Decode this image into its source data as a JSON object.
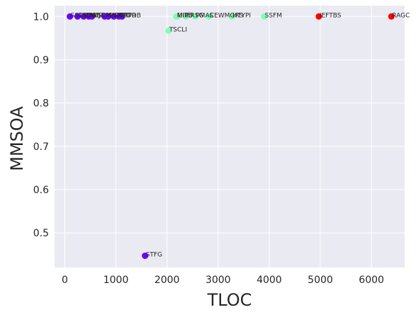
{
  "chart_data": {
    "type": "scatter",
    "title": "",
    "xlabel": "TLOC",
    "ylabel": "MMSOA",
    "xlim": [
      -200,
      6650
    ],
    "ylim": [
      0.42,
      1.025
    ],
    "xticks": [
      0,
      1000,
      2000,
      3000,
      4000,
      5000,
      6000
    ],
    "yticks": [
      0.5,
      0.6,
      0.7,
      0.8,
      0.9,
      1.0
    ],
    "grid": true,
    "legend": "none",
    "background_color": "#EAEAF2",
    "grid_color": "#FFFFFF",
    "colors": {
      "purple": "#6A00FF",
      "green": "#80FFB4",
      "red": "#FF0000"
    },
    "points": [
      {
        "x": 100,
        "y": 1.0,
        "label": "SSTM",
        "color": "purple"
      },
      {
        "x": 250,
        "y": 1.0,
        "label": "CSDG",
        "color": "purple"
      },
      {
        "x": 370,
        "y": 1.0,
        "label": "CPMS",
        "color": "purple"
      },
      {
        "x": 470,
        "y": 1.0,
        "label": "AUJT",
        "color": "purple"
      },
      {
        "x": 530,
        "y": 1.0,
        "label": "RSCM",
        "color": "purple"
      },
      {
        "x": 780,
        "y": 1.0,
        "label": "PMDT",
        "color": "purple"
      },
      {
        "x": 850,
        "y": 1.0,
        "label": "BGTP",
        "color": "purple"
      },
      {
        "x": 960,
        "y": 1.0,
        "label": "SGRT",
        "color": "purple"
      },
      {
        "x": 1060,
        "y": 1.0,
        "label": "CTPR",
        "color": "purple"
      },
      {
        "x": 1120,
        "y": 1.0,
        "label": "TODB",
        "color": "purple"
      },
      {
        "x": 1570,
        "y": 0.447,
        "label": "STFG",
        "color": "purple"
      },
      {
        "x": 2030,
        "y": 0.967,
        "label": "TSCLI",
        "color": "green"
      },
      {
        "x": 2180,
        "y": 1.0,
        "label": "MITE",
        "color": "green"
      },
      {
        "x": 2200,
        "y": 1.0,
        "label": "UIPU",
        "color": "green"
      },
      {
        "x": 2370,
        "y": 1.0,
        "label": "FRSG",
        "color": "green"
      },
      {
        "x": 2550,
        "y": 1.0,
        "label": "PMAS",
        "color": "green"
      },
      {
        "x": 2820,
        "y": 1.0,
        "label": "CEWMGRS",
        "color": "green"
      },
      {
        "x": 3270,
        "y": 1.0,
        "label": "HTYPI",
        "color": "green"
      },
      {
        "x": 3900,
        "y": 1.0,
        "label": "SSFM",
        "color": "green"
      },
      {
        "x": 4970,
        "y": 1.0,
        "label": "IEFTBS",
        "color": "red"
      },
      {
        "x": 6390,
        "y": 1.0,
        "label": "RAGC",
        "color": "red"
      }
    ]
  }
}
